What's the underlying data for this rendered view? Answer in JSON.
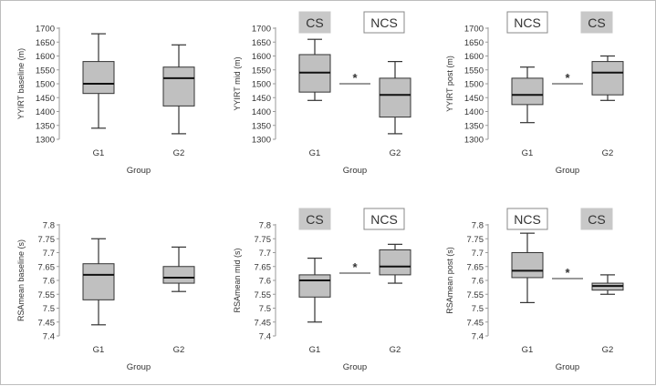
{
  "chart_data": [
    {
      "type": "box",
      "ylabel": "YYIRT baseline (m)",
      "xlabel": "Group",
      "ylim": [
        1300,
        1700
      ],
      "yticks": [
        "1300",
        "1350",
        "1400",
        "1450",
        "1500",
        "1550",
        "1600",
        "1650",
        "1700"
      ],
      "categories": [
        "G1",
        "G2"
      ],
      "boxes": [
        {
          "min": 1340,
          "q1": 1465,
          "median": 1500,
          "q3": 1580,
          "max": 1680
        },
        {
          "min": 1320,
          "q1": 1420,
          "median": 1520,
          "q3": 1560,
          "max": 1640
        }
      ],
      "labels": [],
      "significance": ""
    },
    {
      "type": "box",
      "ylabel": "YYIRT mid (m)",
      "xlabel": "Group",
      "ylim": [
        1300,
        1700
      ],
      "yticks": [
        "1300",
        "1350",
        "1400",
        "1450",
        "1500",
        "1550",
        "1600",
        "1650",
        "1700"
      ],
      "categories": [
        "G1",
        "G2"
      ],
      "boxes": [
        {
          "min": 1440,
          "q1": 1470,
          "median": 1540,
          "q3": 1605,
          "max": 1660
        },
        {
          "min": 1320,
          "q1": 1380,
          "median": 1460,
          "q3": 1520,
          "max": 1580
        }
      ],
      "labels": [
        "CS",
        "NCS"
      ],
      "significance": "*"
    },
    {
      "type": "box",
      "ylabel": "YYIRT post (m)",
      "xlabel": "Group",
      "ylim": [
        1300,
        1700
      ],
      "yticks": [
        "1300",
        "1350",
        "1400",
        "1450",
        "1500",
        "1550",
        "1600",
        "1650",
        "1700"
      ],
      "categories": [
        "G1",
        "G2"
      ],
      "boxes": [
        {
          "min": 1360,
          "q1": 1425,
          "median": 1460,
          "q3": 1520,
          "max": 1560
        },
        {
          "min": 1440,
          "q1": 1460,
          "median": 1540,
          "q3": 1580,
          "max": 1600
        }
      ],
      "labels": [
        "NCS",
        "CS"
      ],
      "significance": "*"
    },
    {
      "type": "box",
      "ylabel": "RSAmean baseline (s)",
      "xlabel": "Group",
      "ylim": [
        7.4,
        7.8
      ],
      "yticks": [
        "7.4",
        "7.45",
        "7.5",
        "7.55",
        "7.6",
        "7.65",
        "7.7",
        "7.75",
        "7.8"
      ],
      "categories": [
        "G1",
        "G2"
      ],
      "boxes": [
        {
          "min": 7.44,
          "q1": 7.53,
          "median": 7.62,
          "q3": 7.66,
          "max": 7.75
        },
        {
          "min": 7.56,
          "q1": 7.59,
          "median": 7.61,
          "q3": 7.65,
          "max": 7.72
        }
      ],
      "labels": [],
      "significance": ""
    },
    {
      "type": "box",
      "ylabel": "RSAmean mid (s)",
      "xlabel": "Group",
      "ylim": [
        7.4,
        7.8
      ],
      "yticks": [
        "7.4",
        "7.45",
        "7.5",
        "7.55",
        "7.6",
        "7.65",
        "7.7",
        "7.75",
        "7.8"
      ],
      "categories": [
        "G1",
        "G2"
      ],
      "boxes": [
        {
          "min": 7.45,
          "q1": 7.54,
          "median": 7.6,
          "q3": 7.62,
          "max": 7.68
        },
        {
          "min": 7.59,
          "q1": 7.62,
          "median": 7.65,
          "q3": 7.71,
          "max": 7.73
        }
      ],
      "labels": [
        "CS",
        "NCS"
      ],
      "significance": "*"
    },
    {
      "type": "box",
      "ylabel": "RSAmean post (s)",
      "xlabel": "Group",
      "ylim": [
        7.4,
        7.8
      ],
      "yticks": [
        "7.4",
        "7.45",
        "7.5",
        "7.55",
        "7.6",
        "7.65",
        "7.7",
        "7.75",
        "7.8"
      ],
      "categories": [
        "G1",
        "G2"
      ],
      "boxes": [
        {
          "min": 7.52,
          "q1": 7.61,
          "median": 7.635,
          "q3": 7.7,
          "max": 7.77
        },
        {
          "min": 7.55,
          "q1": 7.565,
          "median": 7.58,
          "q3": 7.59,
          "max": 7.62
        }
      ],
      "labels": [
        "NCS",
        "CS"
      ],
      "significance": "*"
    }
  ],
  "style": {
    "box_fill": "#c0c0c0",
    "cs_label_fill": "#c8c8c8",
    "ncs_label_fill": "#ffffff",
    "line_color": "#333333",
    "axis_color": "#9a9a9a"
  }
}
